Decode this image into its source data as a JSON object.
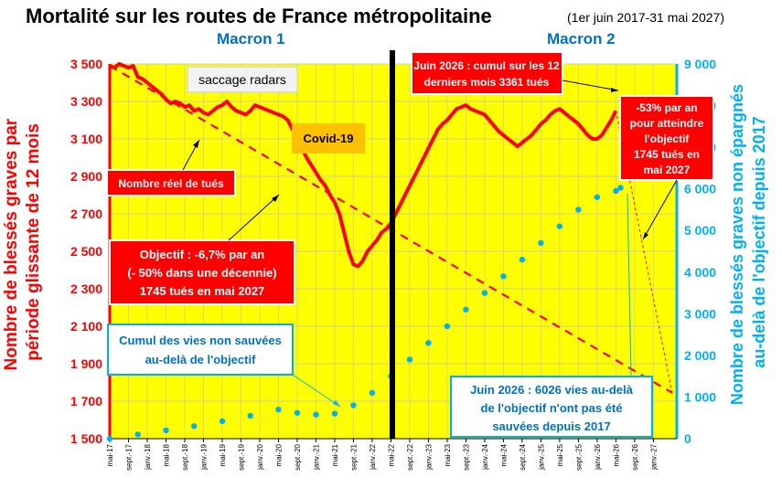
{
  "chart_data": {
    "type": "line",
    "title": "Mortalité sur les routes de France métropolitaine",
    "subtitle": "(1er juin 2017-31 mai 2027)",
    "period_labels": [
      "Macron 1",
      "Macron 2"
    ],
    "ylabel_left": "Nombre de blessés graves par période glissante de 12 mois",
    "ylabel_right": "Nombre de blessés graves non épargnés au-delà de l'objectif depuis 2017",
    "ylim_left": [
      1500,
      3500
    ],
    "ylim_right": [
      0,
      9000
    ],
    "yticks_left": [
      "1 500",
      "1 700",
      "1 900",
      "2 100",
      "2 300",
      "2 500",
      "2 700",
      "2 900",
      "3 100",
      "3 300",
      "3 500"
    ],
    "yticks_right": [
      "0",
      "1 000",
      "2 000",
      "3 000",
      "4 000",
      "5 000",
      "6 000",
      "7 000",
      "8 000",
      "9 000"
    ],
    "xticks": [
      "mai-17",
      "sept.-17",
      "janv.-18",
      "mai-18",
      "sept.-18",
      "janv.-19",
      "mai-19",
      "sept.-19",
      "janv.-20",
      "mai-20",
      "sept.-20",
      "janv.-21",
      "mai-21",
      "sept.-21",
      "janv.-22",
      "mai-22",
      "sept.-22",
      "janv.-23",
      "mai-23",
      "sept.-23",
      "janv.-24",
      "mai-24",
      "sept.-24",
      "janv.-25",
      "mai-25",
      "sept.-25",
      "janv.-26",
      "mai-26",
      "sept.-26",
      "janv.-27"
    ],
    "grid": true,
    "background_color": "#ffff00",
    "colors": {
      "actual": "#ff0000",
      "objective": "#ff0000",
      "cumul": "#00b0f0",
      "divider": "#000000"
    },
    "series": [
      {
        "name": "Nombre réel de tués",
        "axis": "left",
        "style": "solid",
        "x": [
          0,
          1,
          2,
          3,
          4,
          5,
          6,
          7,
          8,
          9,
          10,
          11,
          12,
          13,
          14,
          15,
          16,
          17,
          18,
          19,
          20,
          21,
          22,
          23,
          24,
          25,
          26,
          27,
          28,
          29,
          30,
          31,
          32,
          33,
          34,
          35,
          36,
          37,
          38,
          39,
          40,
          41,
          42,
          43,
          44,
          45,
          46,
          47,
          48,
          49,
          50,
          51,
          52,
          53,
          54,
          55,
          56,
          57,
          58,
          59,
          60,
          61,
          62,
          63,
          64,
          65,
          66,
          67,
          68,
          69,
          70,
          71,
          72,
          73,
          74,
          75,
          76,
          77,
          78,
          79,
          80,
          81,
          82,
          83,
          84,
          85,
          86,
          87,
          88,
          89,
          90,
          91,
          92,
          93,
          94,
          95,
          96,
          97,
          98,
          99,
          100,
          101,
          102,
          103,
          104,
          105,
          106,
          107,
          108
        ],
        "values": [
          3490,
          3480,
          3500,
          3490,
          3480,
          3490,
          3430,
          3420,
          3400,
          3380,
          3360,
          3340,
          3310,
          3290,
          3300,
          3290,
          3270,
          3280,
          3250,
          3260,
          3240,
          3230,
          3250,
          3270,
          3280,
          3300,
          3270,
          3250,
          3240,
          3230,
          3250,
          3280,
          3270,
          3260,
          3250,
          3240,
          3230,
          3220,
          3200,
          3150,
          3100,
          3050,
          3000,
          2960,
          2920,
          2880,
          2850,
          2800,
          2760,
          2700,
          2600,
          2500,
          2430,
          2420,
          2450,
          2500,
          2530,
          2560,
          2600,
          2620,
          2650,
          2700,
          2750,
          2800,
          2850,
          2900,
          2950,
          3000,
          3050,
          3100,
          3150,
          3180,
          3200,
          3230,
          3260,
          3270,
          3280,
          3260,
          3250,
          3240,
          3230,
          3200,
          3170,
          3140,
          3120,
          3100,
          3080,
          3060,
          3080,
          3100,
          3120,
          3150,
          3180,
          3200,
          3230,
          3250,
          3260,
          3240,
          3220,
          3200,
          3180,
          3150,
          3120,
          3100,
          3100,
          3120,
          3160,
          3200,
          3250
        ]
      },
      {
        "name": "Objectif : -6,7% par an",
        "axis": "left",
        "style": "dashed",
        "x": [
          0,
          120
        ],
        "values": [
          3490,
          1745
        ]
      },
      {
        "name": "Cumul des vies non sauvées au-delà de l'objectif",
        "axis": "right",
        "style": "dotted",
        "x": [
          0,
          6,
          12,
          18,
          24,
          30,
          36,
          40,
          44,
          48,
          52,
          56,
          60,
          64,
          68,
          72,
          76,
          80,
          84,
          88,
          92,
          96,
          100,
          104,
          108,
          109
        ],
        "values": [
          0,
          100,
          200,
          300,
          420,
          550,
          700,
          620,
          580,
          600,
          800,
          1100,
          1500,
          1900,
          2300,
          2700,
          3100,
          3500,
          3900,
          4300,
          4700,
          5100,
          5500,
          5800,
          5950,
          6026
        ]
      }
    ],
    "annotations": [
      "saccage radars",
      "Covid-19",
      "Nombre réel de tués",
      "Objectif : -6,7% par an",
      "(- 50% dans une décennie)",
      "1745 tués en mai 2027",
      "Cumul des vies non sauvées",
      "au-delà de l'objectif",
      "Juin 2026 : cumul sur les 12",
      "derniers mois 3361 tués",
      "-53% par an",
      "pour atteindre",
      "l'objectif",
      "1745 tués en",
      "mai 2027",
      "Juin 2026 : 6026 vies au-delà",
      "de l'objectif n'ont pas été",
      "sauvées depuis 2017"
    ]
  }
}
